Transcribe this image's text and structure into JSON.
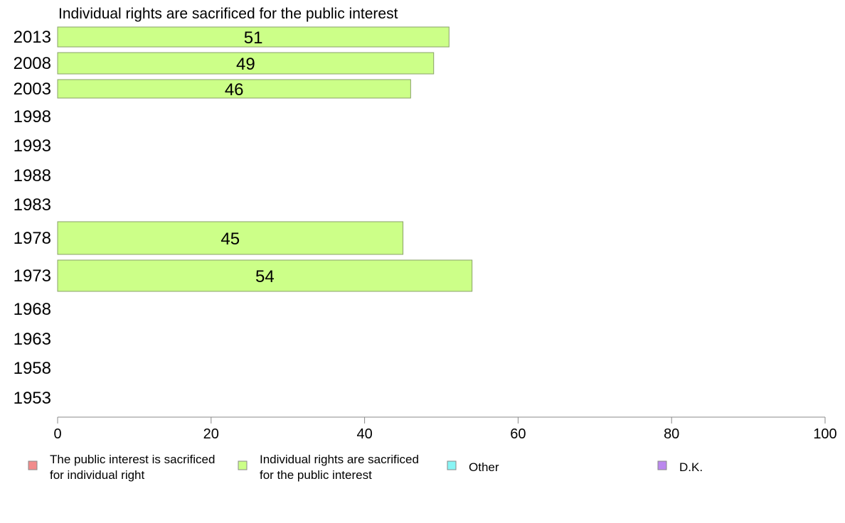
{
  "chart_data": {
    "type": "bar",
    "orientation": "horizontal",
    "title": "Individual rights are sacrificed for the public interest",
    "categories": [
      "2013",
      "2008",
      "2003",
      "1998",
      "1993",
      "1988",
      "1983",
      "1978",
      "1973",
      "1968",
      "1963",
      "1958",
      "1953"
    ],
    "series": [
      {
        "name": "Individual rights are sacrificed for the public interest",
        "color": "#ccff88",
        "values": [
          51,
          49,
          46,
          null,
          null,
          null,
          null,
          45,
          54,
          null,
          null,
          null,
          null
        ],
        "labels": [
          "51",
          "49",
          "46",
          "",
          "",
          "",
          "",
          "45",
          "54",
          "",
          "",
          "",
          ""
        ]
      }
    ],
    "xlim": [
      0,
      100
    ],
    "x_ticks": [
      "0",
      "20",
      "40",
      "60",
      "80",
      "100"
    ],
    "grid": false,
    "legend": {
      "placement": "bottom",
      "entries": [
        {
          "lines": [
            "The public interest is sacrificed",
            "for individual right"
          ],
          "color": "#f28b8b"
        },
        {
          "lines": [
            "Individual rights are sacrificed",
            "for the public interest"
          ],
          "color": "#ccff88"
        },
        {
          "lines": [
            "Other"
          ],
          "color": "#88f5f5"
        },
        {
          "lines": [
            "D.K."
          ],
          "color": "#bb88ee"
        }
      ]
    }
  }
}
